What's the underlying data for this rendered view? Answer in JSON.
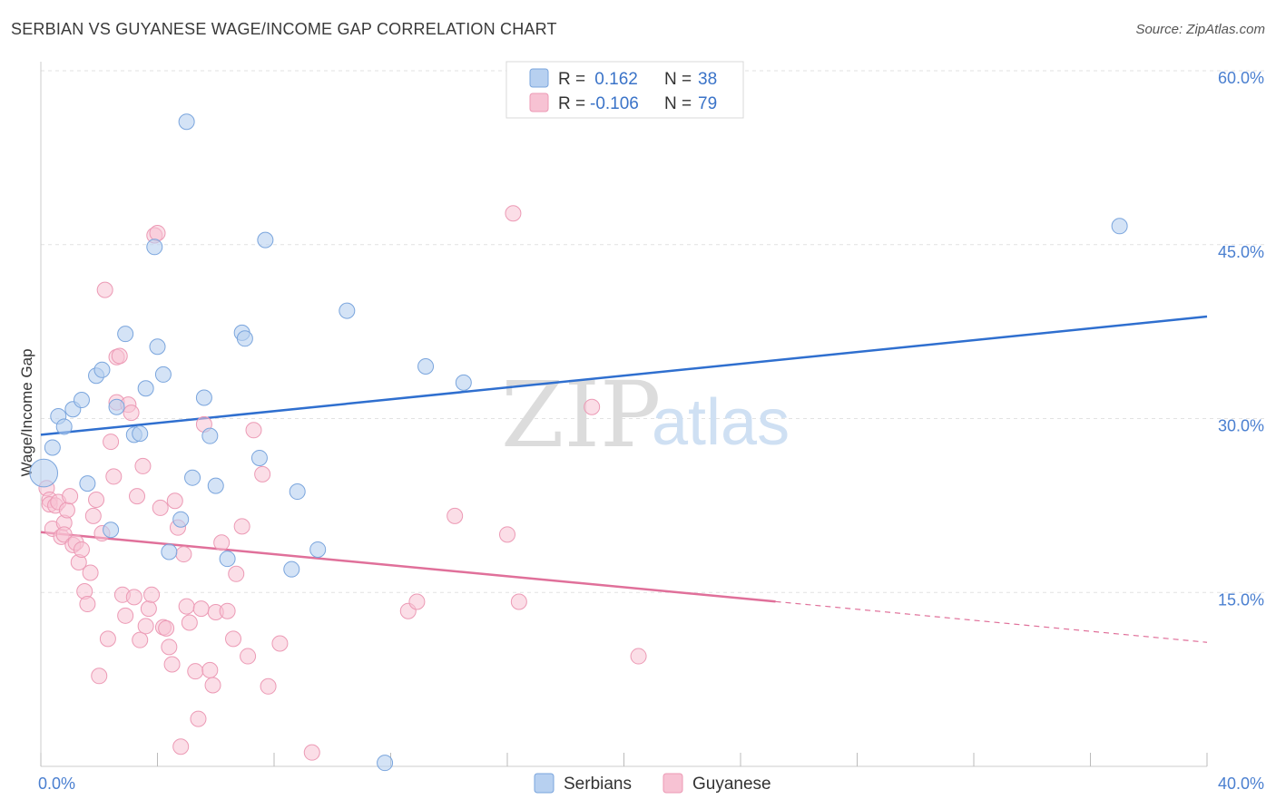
{
  "title": "SERBIAN VS GUYANESE WAGE/INCOME GAP CORRELATION CHART",
  "source": "Source: ZipAtlas.com",
  "watermark": {
    "zip": "ZIP",
    "atlas": "atlas"
  },
  "colors": {
    "serbians_fill": "#b7d0f0",
    "serbians_stroke": "#7aa5dd",
    "serbians_line": "#2f6fcf",
    "guyanese_fill": "#f7c2d3",
    "guyanese_stroke": "#ec9ab5",
    "guyanese_line": "#e0709a",
    "axis_text": "#4a7fd0",
    "grid": "#e2e2e2"
  },
  "legend": {
    "rows": [
      {
        "r_label": "R =",
        "r_value": " 0.162",
        "n_label": "N =",
        "n_value": "38"
      },
      {
        "r_label": "R =",
        "r_value": "-0.106",
        "n_label": "N =",
        "n_value": "79"
      }
    ]
  },
  "bottom_legend": [
    "Serbians",
    "Guyanese"
  ],
  "chart_data": {
    "type": "scatter",
    "title": "SERBIAN VS GUYANESE WAGE/INCOME GAP CORRELATION CHART",
    "xlabel": "",
    "ylabel": "Wage/Income Gap",
    "xlim": [
      0,
      40
    ],
    "ylim": [
      0,
      60
    ],
    "x_tick_labels": [
      "0.0%",
      "40.0%"
    ],
    "y_ticks": [
      15,
      30,
      45,
      60
    ],
    "y_tick_labels": [
      "15.0%",
      "30.0%",
      "45.0%",
      "60.0%"
    ],
    "grid": true,
    "legend_position": "top-center",
    "series": [
      {
        "name": "Serbians",
        "r": 0.162,
        "n": 38,
        "trend": {
          "x": [
            0,
            40
          ],
          "y": [
            28.6,
            38.8
          ],
          "dashed_from": null
        },
        "points": [
          [
            0.1,
            25.3,
            1.8
          ],
          [
            0.4,
            27.5,
            1
          ],
          [
            0.6,
            30.2,
            1
          ],
          [
            0.8,
            29.3,
            1
          ],
          [
            1.1,
            30.8,
            1
          ],
          [
            1.4,
            31.6,
            1
          ],
          [
            1.6,
            24.4,
            1
          ],
          [
            1.9,
            33.7,
            1
          ],
          [
            2.1,
            34.2,
            1
          ],
          [
            2.4,
            20.4,
            1
          ],
          [
            2.6,
            31.0,
            1
          ],
          [
            2.9,
            37.3,
            1
          ],
          [
            3.2,
            28.6,
            1
          ],
          [
            3.4,
            28.7,
            1
          ],
          [
            3.6,
            32.6,
            1
          ],
          [
            3.9,
            44.8,
            1
          ],
          [
            4.0,
            36.2,
            1
          ],
          [
            4.2,
            33.8,
            1
          ],
          [
            4.4,
            18.5,
            1
          ],
          [
            4.8,
            21.3,
            1
          ],
          [
            5.0,
            55.6,
            1
          ],
          [
            5.2,
            24.9,
            1
          ],
          [
            5.6,
            31.8,
            1
          ],
          [
            5.8,
            28.5,
            1
          ],
          [
            6.0,
            24.2,
            1
          ],
          [
            6.4,
            17.9,
            1
          ],
          [
            6.9,
            37.4,
            1
          ],
          [
            7.0,
            36.9,
            1
          ],
          [
            7.5,
            26.6,
            1
          ],
          [
            7.7,
            45.4,
            1
          ],
          [
            8.6,
            17.0,
            1
          ],
          [
            8.8,
            23.7,
            1
          ],
          [
            9.5,
            18.7,
            1
          ],
          [
            10.5,
            39.3,
            1
          ],
          [
            11.8,
            0.3,
            1
          ],
          [
            13.2,
            34.5,
            1
          ],
          [
            14.5,
            33.1,
            1
          ],
          [
            37.0,
            46.6,
            1
          ]
        ]
      },
      {
        "name": "Guyanese",
        "r": -0.106,
        "n": 79,
        "trend": {
          "x": [
            0,
            40
          ],
          "y": [
            20.2,
            10.7
          ],
          "dashed_from": 25.2
        },
        "points": [
          [
            0.2,
            24.0
          ],
          [
            0.3,
            23.0
          ],
          [
            0.3,
            22.6
          ],
          [
            0.4,
            20.5
          ],
          [
            0.5,
            22.5
          ],
          [
            0.6,
            22.8
          ],
          [
            0.7,
            19.8
          ],
          [
            0.8,
            21.0
          ],
          [
            0.8,
            20.0
          ],
          [
            0.9,
            22.1
          ],
          [
            1.0,
            23.3
          ],
          [
            1.1,
            19.1
          ],
          [
            1.2,
            19.3
          ],
          [
            1.3,
            17.6
          ],
          [
            1.4,
            18.7
          ],
          [
            1.5,
            15.1
          ],
          [
            1.6,
            14.0
          ],
          [
            1.7,
            16.7
          ],
          [
            1.8,
            21.6
          ],
          [
            1.9,
            23.0
          ],
          [
            2.0,
            7.8
          ],
          [
            2.1,
            20.1
          ],
          [
            2.2,
            41.1
          ],
          [
            2.3,
            11.0
          ],
          [
            2.4,
            28.0
          ],
          [
            2.5,
            25.0
          ],
          [
            2.6,
            31.4
          ],
          [
            2.6,
            35.3
          ],
          [
            2.7,
            35.4
          ],
          [
            2.8,
            14.8
          ],
          [
            2.9,
            13.0
          ],
          [
            3.0,
            31.2
          ],
          [
            3.1,
            30.5
          ],
          [
            3.2,
            14.6
          ],
          [
            3.3,
            23.3
          ],
          [
            3.4,
            10.9
          ],
          [
            3.5,
            25.9
          ],
          [
            3.6,
            12.1
          ],
          [
            3.7,
            13.6
          ],
          [
            3.8,
            14.8
          ],
          [
            3.9,
            45.8
          ],
          [
            4.0,
            46.0
          ],
          [
            4.1,
            22.3
          ],
          [
            4.2,
            12.0
          ],
          [
            4.3,
            11.9
          ],
          [
            4.4,
            10.3
          ],
          [
            4.5,
            8.8
          ],
          [
            4.6,
            22.9
          ],
          [
            4.7,
            20.6
          ],
          [
            4.8,
            1.7
          ],
          [
            4.9,
            18.3
          ],
          [
            5.0,
            13.8
          ],
          [
            5.1,
            12.4
          ],
          [
            5.3,
            8.2
          ],
          [
            5.4,
            4.1
          ],
          [
            5.5,
            13.6
          ],
          [
            5.6,
            29.5
          ],
          [
            5.8,
            8.3
          ],
          [
            5.9,
            7.0
          ],
          [
            6.0,
            13.3
          ],
          [
            6.2,
            19.3
          ],
          [
            6.4,
            13.4
          ],
          [
            6.6,
            11.0
          ],
          [
            6.7,
            16.6
          ],
          [
            6.9,
            20.7
          ],
          [
            7.1,
            9.5
          ],
          [
            7.3,
            29.0
          ],
          [
            7.6,
            25.2
          ],
          [
            7.8,
            6.9
          ],
          [
            8.2,
            10.6
          ],
          [
            9.3,
            1.2
          ],
          [
            12.6,
            13.4
          ],
          [
            12.9,
            14.2
          ],
          [
            14.2,
            21.6
          ],
          [
            16.2,
            47.7
          ],
          [
            16.4,
            14.2
          ],
          [
            18.9,
            31.0
          ],
          [
            20.5,
            9.5
          ],
          [
            16.0,
            20.0
          ]
        ]
      }
    ]
  }
}
